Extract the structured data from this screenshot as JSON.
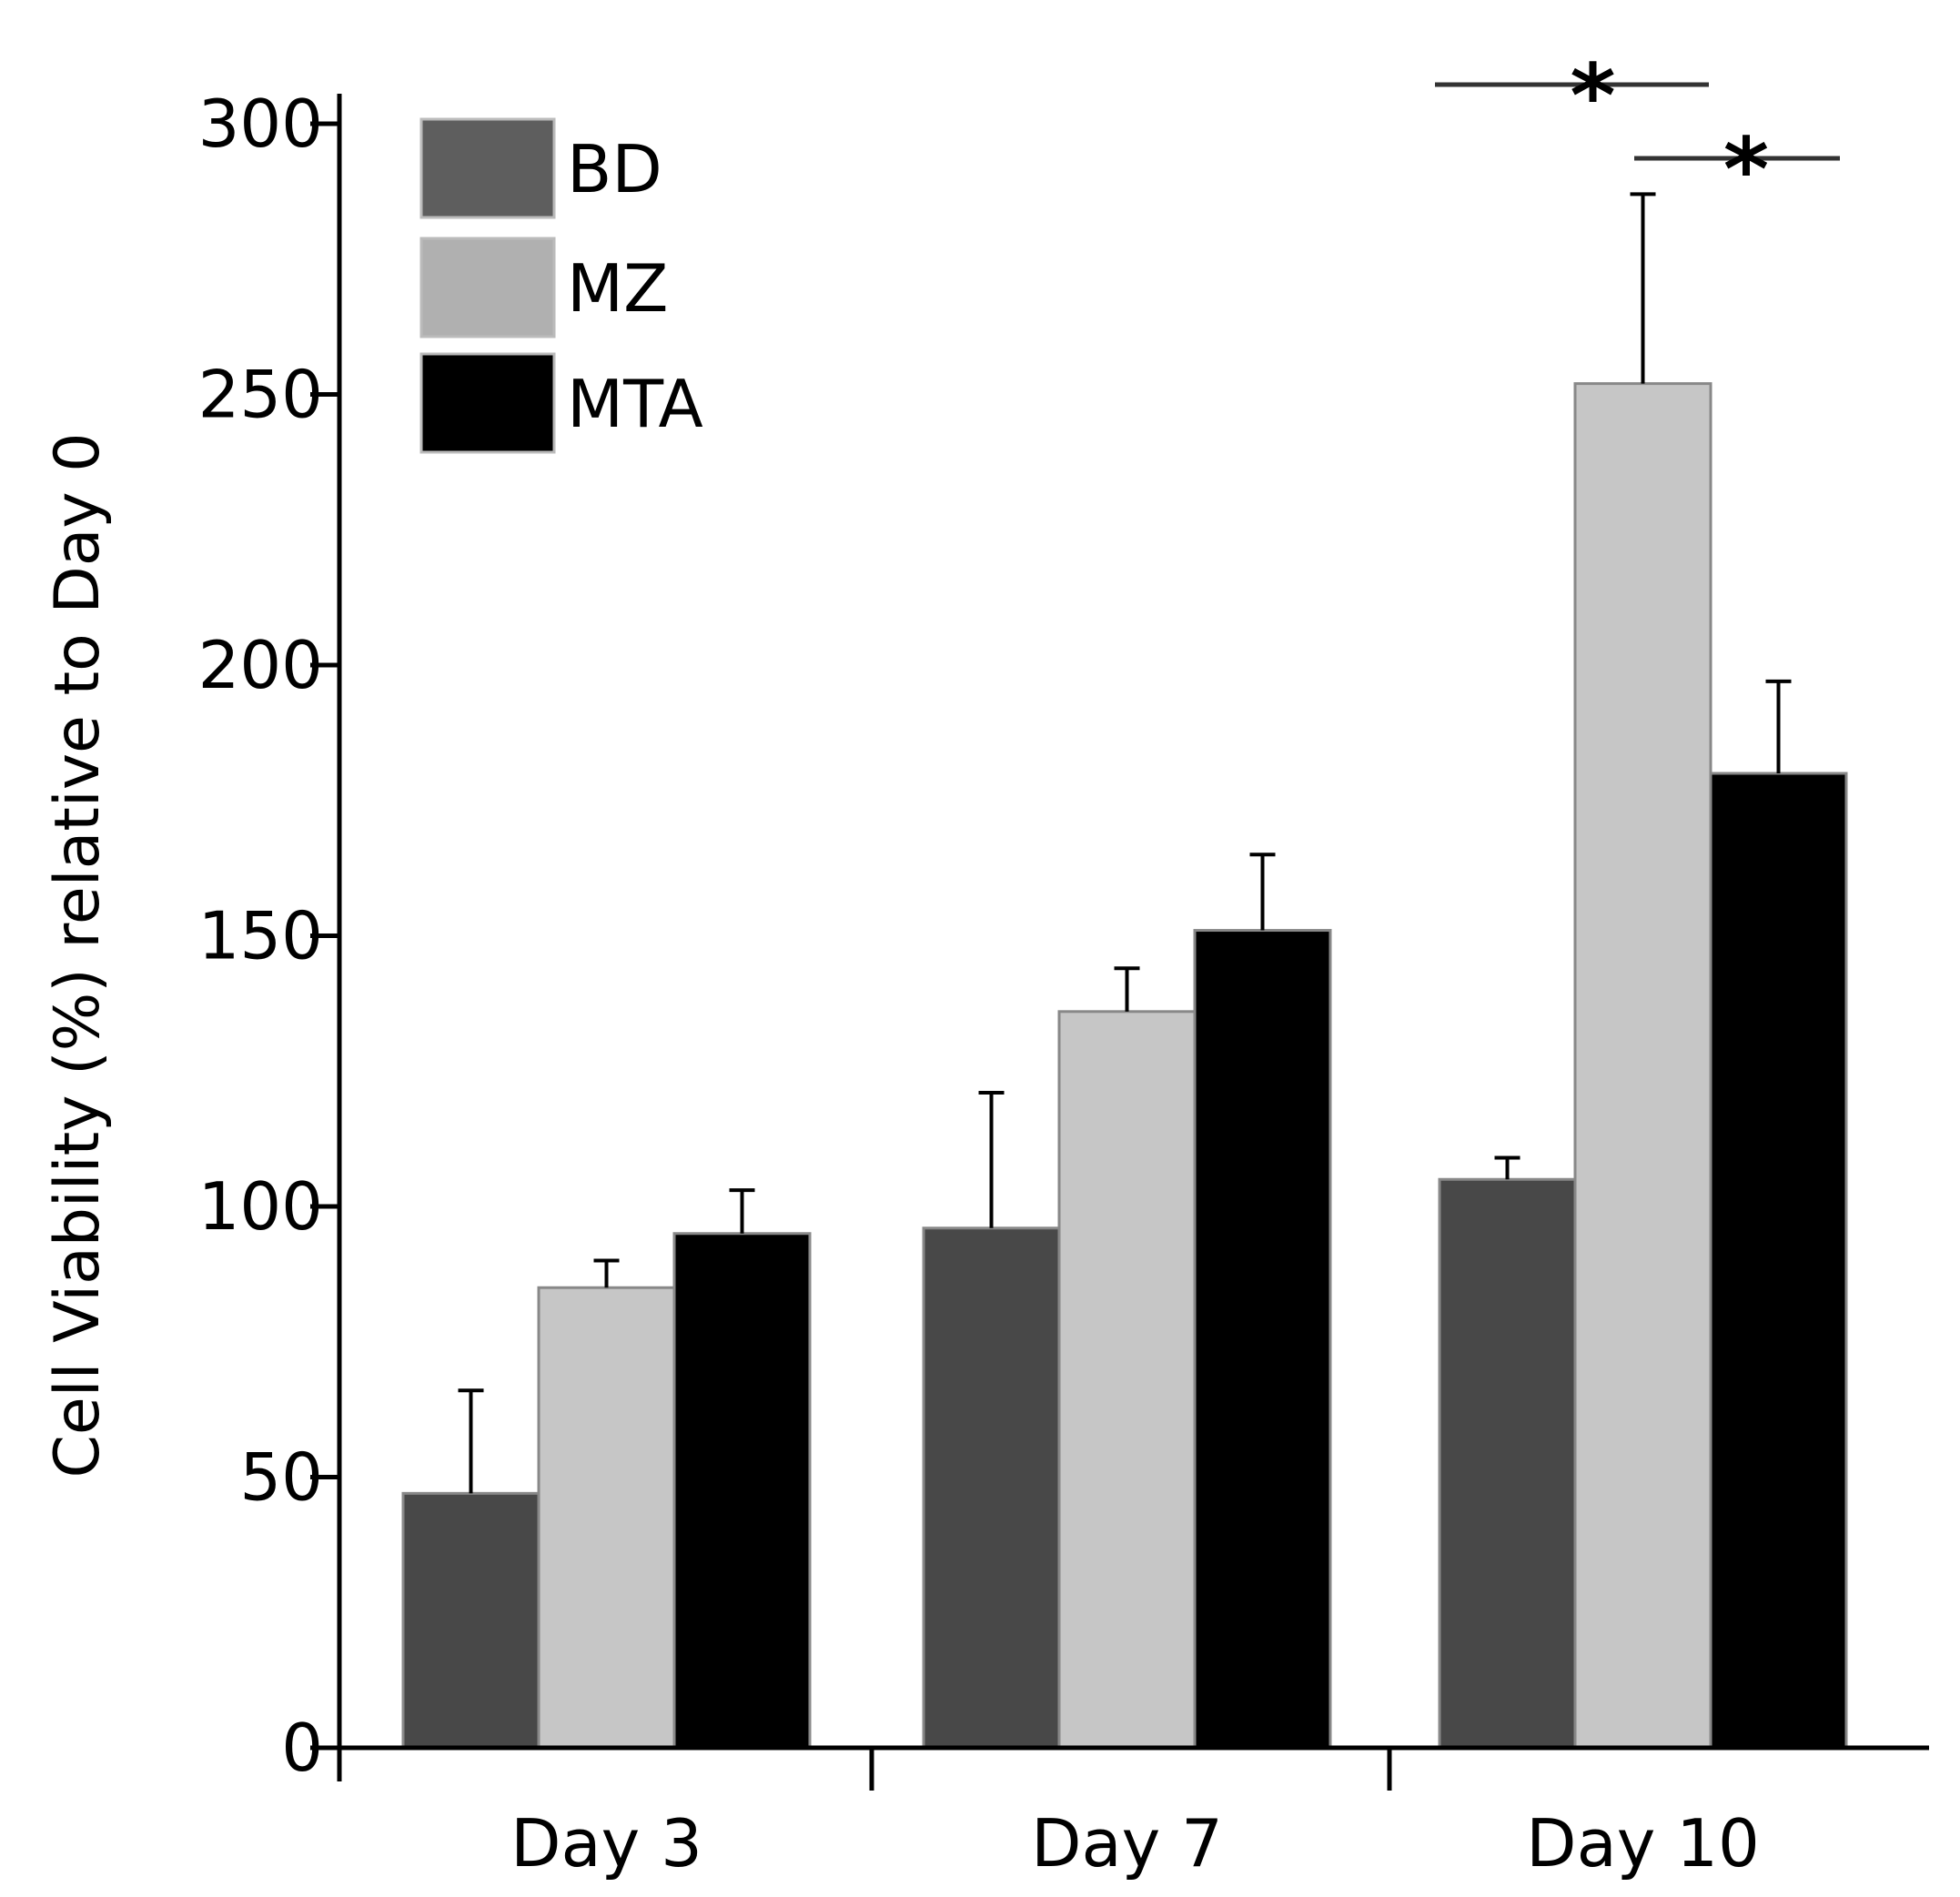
{
  "chart_data": {
    "type": "bar",
    "title": "",
    "xlabel": "",
    "ylabel": "Cell Viability (%) relative to Day 0",
    "ylim": [
      0,
      300
    ],
    "yticks": [
      "0",
      "50",
      "100",
      "150",
      "200",
      "250",
      "300"
    ],
    "ytick_values": [
      0,
      50,
      100,
      150,
      200,
      250,
      300
    ],
    "categories": [
      "Day 3",
      "Day 7",
      "Day 10"
    ],
    "series": [
      {
        "name": "BD",
        "color": "#484848",
        "values": [
          47,
          96,
          105
        ],
        "errors": [
          19,
          25,
          4
        ]
      },
      {
        "name": "MZ",
        "color": "#c6c6c6",
        "values": [
          85,
          136,
          252
        ],
        "errors": [
          5,
          8,
          35
        ]
      },
      {
        "name": "MTA",
        "color": "#000000",
        "values": [
          95,
          151,
          180
        ],
        "errors": [
          8,
          14,
          17
        ]
      }
    ],
    "legend": {
      "position": "top-left",
      "entries": [
        {
          "label": "BD",
          "color": "#5e5e5e"
        },
        {
          "label": "MZ",
          "color": "#b0b0b0"
        },
        {
          "label": "MTA",
          "color": "#000000"
        }
      ]
    },
    "annotations": [
      {
        "text": "*",
        "category": "Day 10",
        "from_series": "BD",
        "to_series": "MZ",
        "level": 2
      },
      {
        "text": "*",
        "category": "Day 10",
        "from_series": "MZ",
        "to_series": "MTA",
        "level": 1
      }
    ],
    "grid": false
  }
}
